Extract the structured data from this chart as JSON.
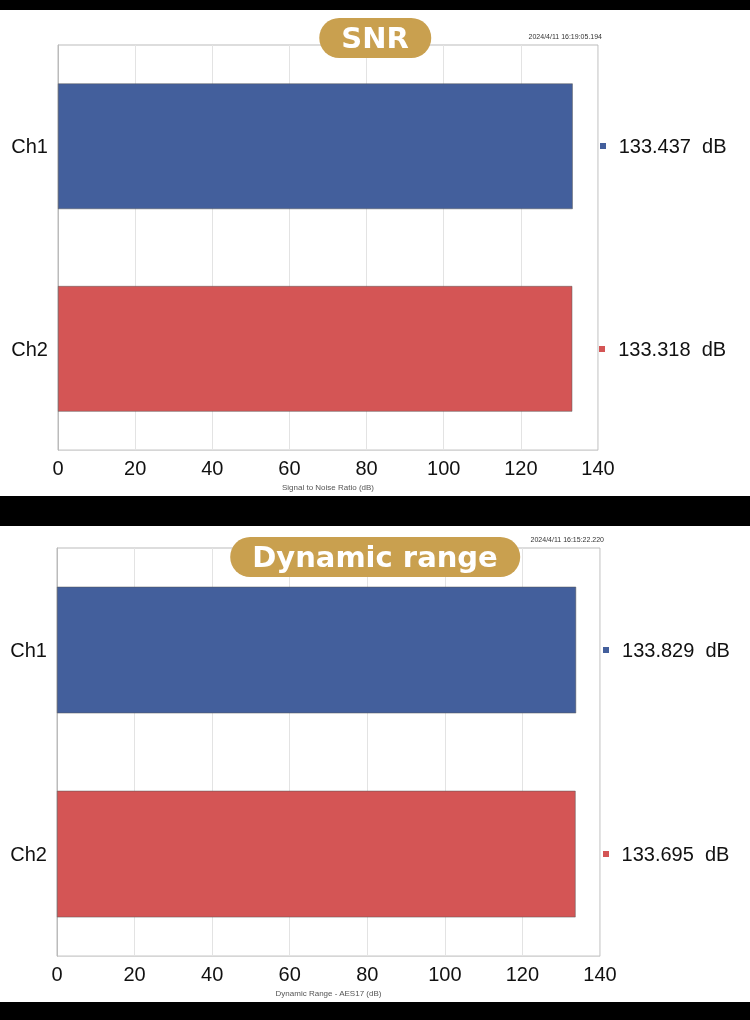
{
  "chart_data": [
    {
      "type": "bar",
      "orientation": "horizontal",
      "title": "SNR",
      "xlabel": "Signal to Noise Ratio (dB)",
      "categories": [
        "Ch1",
        "Ch2"
      ],
      "values": [
        133.437,
        133.318
      ],
      "colors": [
        "#435f9c",
        "#d45555"
      ],
      "value_labels": [
        "133.437  dB",
        "133.318  dB"
      ],
      "xlim": [
        0,
        140
      ],
      "xticks": [
        0,
        20,
        40,
        60,
        80,
        100,
        120,
        140
      ],
      "grid": "x",
      "annotations": [
        "2024/4/11 16:19:05.194"
      ]
    },
    {
      "type": "bar",
      "orientation": "horizontal",
      "title": "Dynamic range",
      "xlabel": "Dynamic Range - AES17 (dB)",
      "categories": [
        "Ch1",
        "Ch2"
      ],
      "values": [
        133.829,
        133.695
      ],
      "colors": [
        "#435f9c",
        "#d45555"
      ],
      "value_labels": [
        "133.829  dB",
        "133.695  dB"
      ],
      "xlim": [
        0,
        140
      ],
      "xticks": [
        0,
        20,
        40,
        60,
        80,
        100,
        120,
        140
      ],
      "grid": "x",
      "annotations": [
        "2024/4/11 16:15:22.220"
      ]
    }
  ]
}
